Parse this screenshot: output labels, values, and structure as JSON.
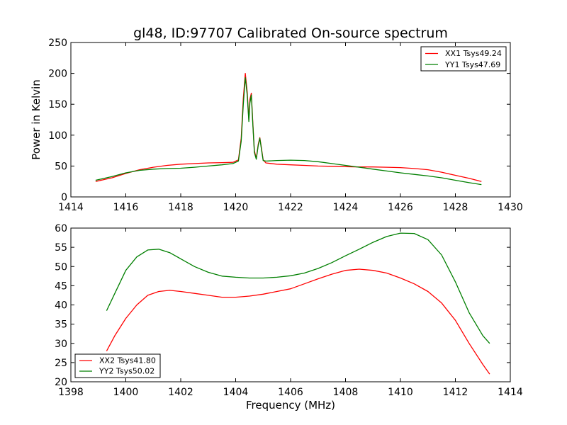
{
  "title": "gl48, ID:97707 Calibrated On-source spectrum",
  "colors": {
    "red": "#ff0000",
    "green": "#007f00",
    "axes": "#000000",
    "background": "#ffffff"
  },
  "chart_data": [
    {
      "type": "line",
      "title": "gl48, ID:97707 Calibrated On-source spectrum",
      "xlabel": "",
      "ylabel": "Power in Kelvin",
      "xlim": [
        1414,
        1430
      ],
      "ylim": [
        0,
        250
      ],
      "xticks": [
        1414,
        1416,
        1418,
        1420,
        1422,
        1424,
        1426,
        1428,
        1430
      ],
      "yticks": [
        0,
        50,
        100,
        150,
        200,
        250
      ],
      "grid": false,
      "legend_position": "top-right",
      "series": [
        {
          "name": "XX1 Tsys49.24",
          "color": "#ff0000",
          "x": [
            1414.9,
            1415.5,
            1416.0,
            1416.5,
            1417.0,
            1417.5,
            1418.0,
            1418.5,
            1419.0,
            1419.5,
            1419.9,
            1420.1,
            1420.2,
            1420.28,
            1420.35,
            1420.42,
            1420.48,
            1420.52,
            1420.57,
            1420.62,
            1420.68,
            1420.75,
            1420.82,
            1420.88,
            1420.93,
            1421.0,
            1421.1,
            1421.5,
            1422.0,
            1422.5,
            1423.0,
            1423.5,
            1424.0,
            1424.5,
            1425.0,
            1425.5,
            1426.0,
            1426.5,
            1427.0,
            1427.5,
            1428.0,
            1428.5,
            1428.95
          ],
          "y": [
            25,
            31,
            38,
            44,
            48,
            51,
            53,
            54,
            55,
            55.5,
            56,
            60,
            95,
            160,
            200,
            170,
            125,
            158,
            168,
            125,
            75,
            62,
            85,
            96,
            82,
            60,
            55,
            53,
            52,
            51,
            50,
            49.5,
            49,
            48.5,
            48.5,
            48,
            47.5,
            46,
            44,
            40,
            35,
            30,
            25
          ]
        },
        {
          "name": "YY1 Tsys47.69",
          "color": "#007f00",
          "x": [
            1414.9,
            1415.5,
            1416.0,
            1416.5,
            1417.0,
            1417.5,
            1418.0,
            1418.5,
            1419.0,
            1419.5,
            1419.9,
            1420.1,
            1420.2,
            1420.28,
            1420.35,
            1420.42,
            1420.48,
            1420.52,
            1420.57,
            1420.62,
            1420.68,
            1420.75,
            1420.82,
            1420.88,
            1420.93,
            1421.0,
            1421.1,
            1421.5,
            1422.0,
            1422.5,
            1423.0,
            1423.5,
            1424.0,
            1424.5,
            1425.0,
            1425.5,
            1426.0,
            1426.5,
            1427.0,
            1427.5,
            1428.0,
            1428.5,
            1428.95
          ],
          "y": [
            27,
            33,
            39,
            43,
            45,
            46,
            46.5,
            48,
            50,
            52,
            54,
            58,
            90,
            150,
            193,
            165,
            122,
            152,
            165,
            122,
            72,
            61,
            83,
            95,
            80,
            59,
            58,
            59,
            59.5,
            59,
            57,
            54,
            51,
            48,
            45,
            42,
            39,
            36.5,
            34,
            31,
            27,
            23,
            20
          ]
        }
      ]
    },
    {
      "type": "line",
      "title": "",
      "xlabel": "Frequency (MHz)",
      "ylabel": "",
      "xlim": [
        1398,
        1414
      ],
      "ylim": [
        20,
        60
      ],
      "xticks": [
        1398,
        1400,
        1402,
        1404,
        1406,
        1408,
        1410,
        1412,
        1414
      ],
      "yticks": [
        20,
        25,
        30,
        35,
        40,
        45,
        50,
        55,
        60
      ],
      "grid": false,
      "legend_position": "bottom-left",
      "series": [
        {
          "name": "XX2 Tsys41.80",
          "color": "#ff0000",
          "x": [
            1399.3,
            1399.6,
            1400.0,
            1400.4,
            1400.8,
            1401.2,
            1401.6,
            1402.0,
            1402.5,
            1403.0,
            1403.5,
            1404.0,
            1404.5,
            1405.0,
            1405.5,
            1406.0,
            1406.5,
            1407.0,
            1407.5,
            1408.0,
            1408.5,
            1409.0,
            1409.5,
            1410.0,
            1410.5,
            1411.0,
            1411.5,
            1412.0,
            1412.5,
            1413.0,
            1413.25
          ],
          "y": [
            28,
            32,
            36.5,
            40,
            42.5,
            43.5,
            43.8,
            43.5,
            43,
            42.5,
            42,
            42,
            42.3,
            42.8,
            43.5,
            44.2,
            45.5,
            46.8,
            48,
            49,
            49.3,
            49,
            48.3,
            47,
            45.5,
            43.5,
            40.5,
            36,
            30,
            24.5,
            22
          ]
        },
        {
          "name": "YY2 Tsys50.02",
          "color": "#007f00",
          "x": [
            1399.3,
            1399.6,
            1400.0,
            1400.4,
            1400.8,
            1401.2,
            1401.6,
            1402.0,
            1402.5,
            1403.0,
            1403.5,
            1404.0,
            1404.5,
            1405.0,
            1405.5,
            1406.0,
            1406.5,
            1407.0,
            1407.5,
            1408.0,
            1408.5,
            1409.0,
            1409.5,
            1410.0,
            1410.5,
            1411.0,
            1411.5,
            1412.0,
            1412.5,
            1413.0,
            1413.25
          ],
          "y": [
            38.5,
            43,
            49,
            52.5,
            54.3,
            54.5,
            53.6,
            52,
            50,
            48.5,
            47.5,
            47.2,
            47,
            47,
            47.2,
            47.6,
            48.3,
            49.5,
            51,
            52.8,
            54.5,
            56.3,
            57.8,
            58.7,
            58.6,
            57,
            53,
            46,
            38,
            32,
            30
          ]
        }
      ]
    }
  ]
}
